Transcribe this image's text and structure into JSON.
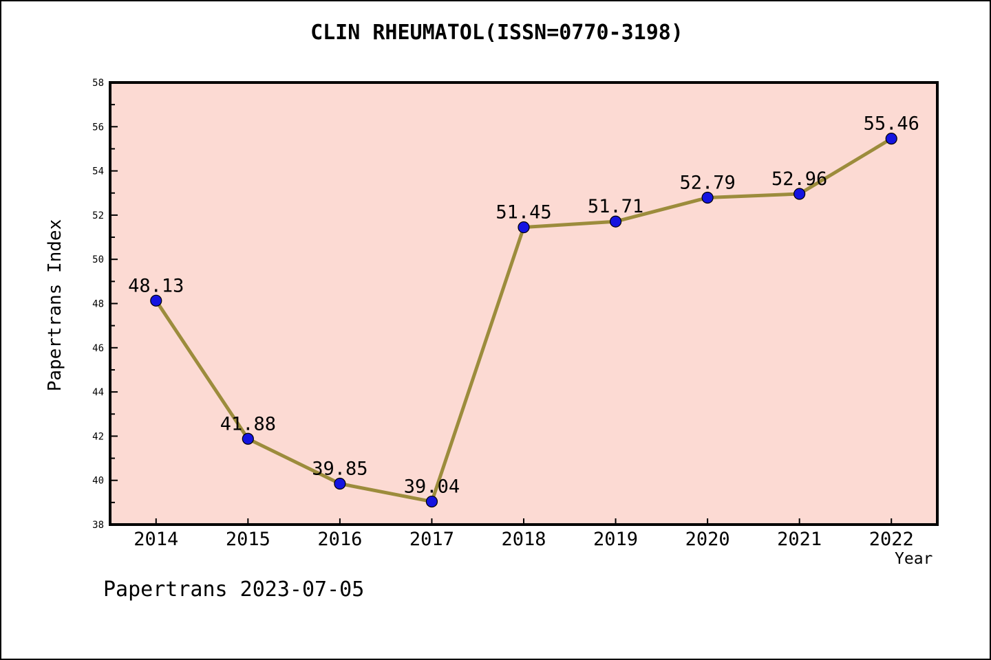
{
  "header": {
    "title": "CLIN RHEUMATOL(ISSN=0770-3198)"
  },
  "chart_data": {
    "type": "line",
    "title": "CLIN RHEUMATOL(ISSN=0770-3198)",
    "xlabel": "Year",
    "ylabel": "Papertrans Index",
    "x": [
      2014,
      2015,
      2016,
      2017,
      2018,
      2019,
      2020,
      2021,
      2022
    ],
    "values": [
      48.13,
      41.88,
      39.85,
      39.04,
      51.45,
      51.71,
      52.79,
      52.96,
      55.46
    ],
    "point_labels": [
      "48.13",
      "41.88",
      "39.85",
      "39.04",
      "51.45",
      "51.71",
      "52.79",
      "52.96",
      "55.46"
    ],
    "x_tick_labels": [
      "2014",
      "2015",
      "2016",
      "2017",
      "2018",
      "2019",
      "2020",
      "2021",
      "2022"
    ],
    "yticks_major": [
      38,
      40,
      42,
      44,
      46,
      48,
      50,
      52,
      54,
      56,
      58
    ],
    "yticks_minor": [
      39,
      41,
      43,
      45,
      47,
      49,
      51,
      53,
      55,
      57
    ],
    "ylim": [
      38,
      58
    ],
    "xlim": [
      2013.5,
      2022.5
    ],
    "grid": false,
    "legend": null,
    "colors": {
      "plot_background": "#fcdad3",
      "line": "#9c8c3c",
      "marker_fill": "#1414e0",
      "marker_edge": "#000000",
      "frame": "#000000",
      "text": "#000000",
      "page_background": "#ffffff"
    }
  },
  "footer": {
    "text": "Papertrans 2023-07-05"
  }
}
